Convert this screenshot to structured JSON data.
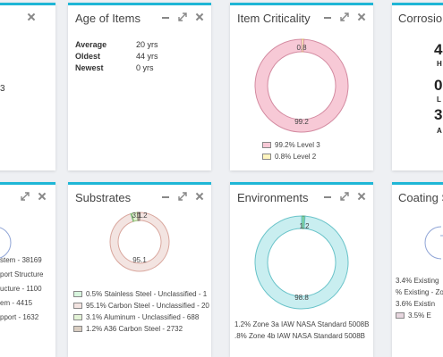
{
  "colors": {
    "accent": "#1fb6d6",
    "criticality_main": "#f7c9d6",
    "criticality_minor": "#fff5bf",
    "substrates_main": "#f3e4e1",
    "environments_main": "#c9eef0",
    "coating_minor": "#e6d6de"
  },
  "icons": {
    "minimize": "minus-icon",
    "expand": "expand-icon",
    "close": "close-icon"
  },
  "top_left": {
    "value": "3"
  },
  "age": {
    "title": "Age of Items",
    "rows": [
      {
        "label": "Average",
        "value": "20 yrs"
      },
      {
        "label": "Oldest",
        "value": "44 yrs"
      },
      {
        "label": "Newest",
        "value": "0 yrs"
      }
    ]
  },
  "criticality": {
    "title": "Item Criticality",
    "slice_labels": [
      "99.2",
      "0.8"
    ],
    "legend": [
      {
        "text": "99.2% Level 3",
        "color": "#f7c9d6"
      },
      {
        "text": "0.8% Level 2",
        "color": "#fff5bf"
      }
    ]
  },
  "corrosion": {
    "title": "Corrosion",
    "stats": [
      {
        "value": "4",
        "label": "H"
      },
      {
        "value": "0.",
        "label": "L"
      },
      {
        "value": "3.",
        "label": "A"
      }
    ]
  },
  "bottom_left": {
    "lines": [
      "stem - 38169",
      "port Structure",
      "ucture - 1100",
      "em - 4415",
      "pport - 1632"
    ]
  },
  "substrates": {
    "title": "Substrates",
    "slice_labels": [
      "95.1",
      "3.1",
      "1.2"
    ],
    "legend": [
      {
        "text": "0.5% Stainless Steel - Unclassified - 1",
        "color": "#d7f5dd"
      },
      {
        "text": "95.1% Carbon Steel - Unclassified - 20",
        "color": "#f3e4e1"
      },
      {
        "text": "3.1% Aluminum - Unclassified - 688",
        "color": "#e3f3d6"
      },
      {
        "text": "1.2% A36 Carbon Steel - 2732",
        "color": "#d9cdc1"
      }
    ]
  },
  "environments": {
    "title": "Environments",
    "slice_labels": [
      "98.8",
      "1.2"
    ],
    "legend": [
      {
        "text": "1.2% Zone 3a IAW NASA Standard 5008B"
      },
      {
        "text": ".8% Zone 4b IAW NASA Standard 5008B"
      }
    ]
  },
  "coating": {
    "title": "Coating S",
    "legend": [
      {
        "text": "3.4% Existing"
      },
      {
        "text": "% Existing - Zo"
      },
      {
        "text": "3.6% Existin"
      },
      {
        "text": "3.5% E",
        "color": "#e6d6de"
      }
    ]
  },
  "chart_data": [
    {
      "type": "pie",
      "categories": [
        "Level 3",
        "Level 2"
      ],
      "values": [
        99.2,
        0.8
      ]
    },
    {
      "type": "pie",
      "categories": [
        "Stainless Steel - Unclassified",
        "Carbon Steel - Unclassified",
        "Aluminum - Unclassified",
        "A36 Carbon Steel"
      ],
      "values": [
        0.5,
        95.1,
        3.1,
        1.2
      ]
    },
    {
      "type": "pie",
      "categories": [
        "Zone 4b IAW NASA Standard 5008B",
        "Zone 3a IAW NASA Standard 5008B"
      ],
      "values": [
        98.8,
        1.2
      ]
    }
  ]
}
